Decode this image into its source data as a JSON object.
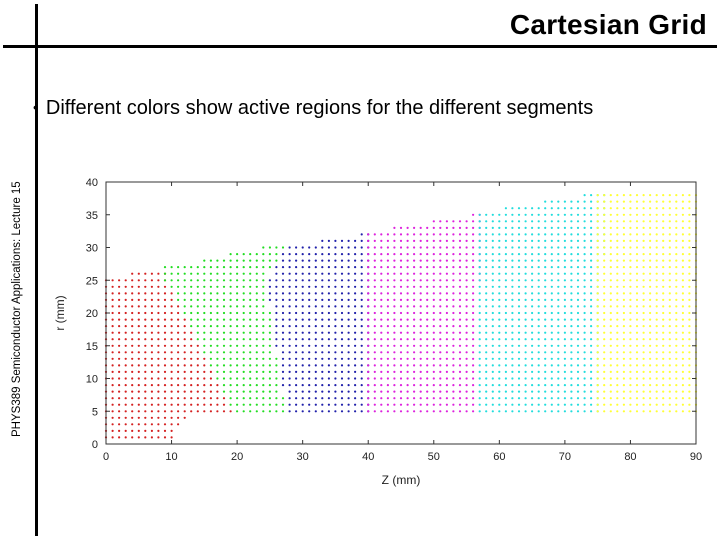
{
  "slide": {
    "title": "Cartesian Grid",
    "sidebar": "PHYS389 Semiconductor Applications: Lecture 15",
    "bullet_marker": "•",
    "bullet": "Different colors show active regions for the different segments"
  },
  "chart_data": {
    "type": "scatter",
    "title": "",
    "xlabel": "Z (mm)",
    "ylabel": "r (mm)",
    "xlim": [
      0,
      90
    ],
    "ylim": [
      0,
      40
    ],
    "xticks": [
      0,
      10,
      20,
      30,
      40,
      50,
      60,
      70,
      80,
      90
    ],
    "yticks": [
      0,
      5,
      10,
      15,
      20,
      25,
      30,
      35,
      40
    ],
    "grid": false,
    "legend": "none",
    "point_spacing_mm": 1,
    "series": [
      {
        "color": "#d42020",
        "region": {
          "z_range": [
            0,
            19
          ],
          "r_bottom": [
            [
              0,
              1
            ],
            [
              10,
              1
            ],
            [
              13,
              5
            ],
            [
              19,
              5
            ]
          ],
          "r_top": [
            [
              0,
              25
            ],
            [
              4,
              26
            ],
            [
              9,
              26
            ],
            [
              9,
              25
            ],
            [
              19,
              5
            ]
          ]
        }
      },
      {
        "color": "#22dd22",
        "region": {
          "z_range": [
            9,
            27
          ],
          "r_bottom": [
            [
              9,
              25
            ],
            [
              19,
              5
            ],
            [
              27,
              5
            ]
          ],
          "r_top": [
            [
              9,
              27
            ],
            [
              14,
              27
            ],
            [
              14,
              28
            ],
            [
              18,
              28
            ],
            [
              18,
              29
            ],
            [
              23,
              29
            ],
            [
              23,
              30
            ],
            [
              27,
              30
            ]
          ],
          "left_boundary": [
            [
              9,
              25
            ],
            [
              9,
              27
            ]
          ],
          "right_boundary": [
            [
              27,
              30
            ],
            [
              24,
              25
            ],
            [
              27,
              5
            ]
          ]
        }
      },
      {
        "color": "#2020aa",
        "region": {
          "z_range": [
            23,
            40
          ],
          "r_bottom": [
            [
              23,
              5
            ],
            [
              40,
              5
            ]
          ],
          "r_top": [
            [
              23,
              29
            ],
            [
              26,
              30
            ],
            [
              32,
              30
            ],
            [
              32,
              31
            ],
            [
              38,
              31
            ],
            [
              38,
              32
            ],
            [
              40,
              32
            ]
          ],
          "left_boundary": [
            [
              27,
              30
            ],
            [
              24,
              25
            ],
            [
              27,
              5
            ]
          ]
        }
      },
      {
        "color": "#dd22dd",
        "region": {
          "z_range": [
            40,
            58
          ],
          "r_bottom": [
            [
              40,
              5
            ],
            [
              57,
              5
            ]
          ],
          "r_top": [
            [
              40,
              32
            ],
            [
              43,
              32
            ],
            [
              43,
              33
            ],
            [
              49,
              33
            ],
            [
              49,
              34
            ],
            [
              55,
              34
            ],
            [
              55,
              35
            ],
            [
              57,
              35
            ]
          ],
          "right_boundary": [
            [
              57,
              35
            ],
            [
              57,
              25
            ],
            [
              56,
              22
            ],
            [
              56,
              5
            ]
          ]
        }
      },
      {
        "color": "#22dddd",
        "region": {
          "z_range": [
            57,
            76
          ],
          "r_bottom": [
            [
              57,
              5
            ],
            [
              76,
              5
            ]
          ],
          "r_top": [
            [
              57,
              35
            ],
            [
              60,
              35
            ],
            [
              60,
              36
            ],
            [
              66,
              36
            ],
            [
              66,
              37
            ],
            [
              72,
              37
            ],
            [
              72,
              38
            ],
            [
              76,
              38
            ]
          ],
          "right_boundary": [
            [
              76,
              38
            ],
            [
              76,
              30
            ],
            [
              75,
              25
            ],
            [
              75,
              5
            ]
          ]
        }
      },
      {
        "color": "#ffff33",
        "region": {
          "z_range": [
            75,
            90
          ],
          "r_bottom": [
            [
              75,
              5
            ],
            [
              90,
              5
            ]
          ],
          "r_top": [
            [
              75,
              38
            ],
            [
              90,
              38
            ]
          ]
        }
      }
    ]
  }
}
